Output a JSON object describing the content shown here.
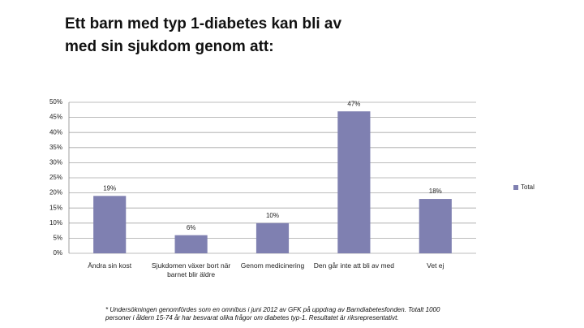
{
  "chart_data": {
    "type": "bar",
    "title": "Ett barn med typ 1-diabetes kan bli av med sin sjukdom genom att:",
    "categories": [
      "Ändra sin kost",
      "Sjukdomen växer bort när barnet blir äldre",
      "Genom medicinering",
      "Den går inte att bli av med",
      "Vet ej"
    ],
    "series": [
      {
        "name": "Total",
        "color": "#7f80b1",
        "values": [
          19,
          6,
          10,
          47,
          18
        ],
        "value_labels": [
          "19%",
          "6%",
          "10%",
          "47%",
          "18%"
        ]
      }
    ],
    "ylim": [
      0,
      50
    ],
    "yticks": [
      {
        "value": 0,
        "label": "0%"
      },
      {
        "value": 5,
        "label": "5%"
      },
      {
        "value": 10,
        "label": "10%"
      },
      {
        "value": 15,
        "label": "15%"
      },
      {
        "value": 20,
        "label": "20%"
      },
      {
        "value": 25,
        "label": "25%"
      },
      {
        "value": 30,
        "label": "30%"
      },
      {
        "value": 35,
        "label": "35%"
      },
      {
        "value": 40,
        "label": "40%"
      },
      {
        "value": 45,
        "label": "45%"
      },
      {
        "value": 50,
        "label": "50%"
      }
    ],
    "grid": true,
    "legend": "right",
    "footnote": "* Undersökningen genomfördes som en omnibus i juni 2012 av GFK på uppdrag av Barndiabetesfonden. Totalt 1000 personer i åldern 15-74 år har besvarat olika frågor om diabetes typ-1. Resultatet är riksrepresentativt."
  }
}
